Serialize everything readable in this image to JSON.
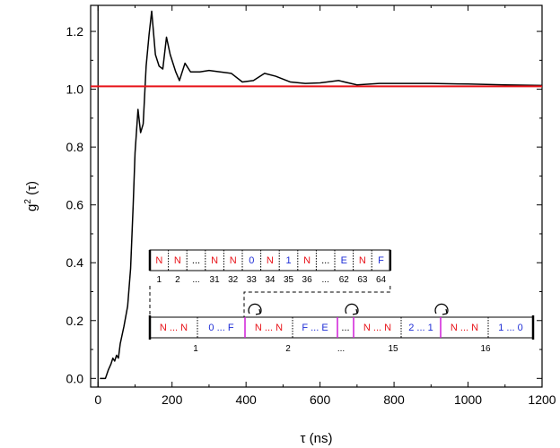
{
  "chart_data": {
    "type": "line",
    "title": "",
    "xlabel": "τ (ns)",
    "ylabel_base": "g",
    "ylabel_sup": "2",
    "ylabel_arg": " (τ)",
    "xlim": [
      -20,
      1200
    ],
    "ylim": [
      -0.03,
      1.29
    ],
    "x_ticks": [
      0,
      200,
      400,
      600,
      800,
      1000,
      1200
    ],
    "x_tick_labels": [
      "0",
      "200",
      "400",
      "600",
      "800",
      "1000",
      "1200"
    ],
    "y_ticks": [
      0.0,
      0.2,
      0.4,
      0.6,
      0.8,
      1.0,
      1.2
    ],
    "y_tick_labels": [
      "0.0",
      "0.2",
      "0.4",
      "0.6",
      "0.8",
      "1.0",
      "1.2"
    ],
    "grid": false,
    "vertical_line_x": 0,
    "reference_line": {
      "y": 1.01,
      "color": "#e8141a"
    },
    "series": [
      {
        "color": "#000000",
        "points": [
          [
            5,
            0.0
          ],
          [
            20,
            0.0
          ],
          [
            28,
            0.03
          ],
          [
            35,
            0.05
          ],
          [
            40,
            0.07
          ],
          [
            45,
            0.06
          ],
          [
            50,
            0.08
          ],
          [
            55,
            0.07
          ],
          [
            60,
            0.12
          ],
          [
            70,
            0.18
          ],
          [
            80,
            0.25
          ],
          [
            88,
            0.38
          ],
          [
            95,
            0.6
          ],
          [
            100,
            0.78
          ],
          [
            108,
            0.93
          ],
          [
            115,
            0.85
          ],
          [
            122,
            0.88
          ],
          [
            130,
            1.08
          ],
          [
            138,
            1.19
          ],
          [
            145,
            1.27
          ],
          [
            155,
            1.12
          ],
          [
            165,
            1.08
          ],
          [
            175,
            1.07
          ],
          [
            185,
            1.18
          ],
          [
            195,
            1.12
          ],
          [
            210,
            1.06
          ],
          [
            220,
            1.03
          ],
          [
            235,
            1.09
          ],
          [
            250,
            1.06
          ],
          [
            275,
            1.06
          ],
          [
            300,
            1.065
          ],
          [
            330,
            1.06
          ],
          [
            360,
            1.055
          ],
          [
            390,
            1.025
          ],
          [
            420,
            1.03
          ],
          [
            450,
            1.055
          ],
          [
            480,
            1.045
          ],
          [
            520,
            1.025
          ],
          [
            560,
            1.02
          ],
          [
            600,
            1.022
          ],
          [
            650,
            1.03
          ],
          [
            700,
            1.015
          ],
          [
            760,
            1.02
          ],
          [
            820,
            1.02
          ],
          [
            900,
            1.02
          ],
          [
            1000,
            1.018
          ],
          [
            1100,
            1.015
          ],
          [
            1200,
            1.013
          ]
        ]
      }
    ]
  },
  "inset": {
    "colors": {
      "red": "#e8141a",
      "blue": "#1f2ed6",
      "magenta": "#d01ed8"
    },
    "top_cells": [
      {
        "text": "N",
        "color": "red",
        "idx": "1"
      },
      {
        "text": "N",
        "color": "red",
        "idx": "2"
      },
      {
        "text": "...",
        "color": "black",
        "idx": "..."
      },
      {
        "text": "N",
        "color": "red",
        "idx": "31"
      },
      {
        "text": "N",
        "color": "red",
        "idx": "32"
      },
      {
        "text": "0",
        "color": "blue",
        "idx": "33"
      },
      {
        "text": "N",
        "color": "red",
        "idx": "34"
      },
      {
        "text": "1",
        "color": "blue",
        "idx": "35"
      },
      {
        "text": "N",
        "color": "red",
        "idx": "36"
      },
      {
        "text": "...",
        "color": "black",
        "idx": "..."
      },
      {
        "text": "E",
        "color": "blue",
        "idx": "62"
      },
      {
        "text": "N",
        "color": "red",
        "idx": "63"
      },
      {
        "text": "F",
        "color": "blue",
        "idx": "64"
      }
    ],
    "bottom_segments": [
      {
        "left": "N",
        "mid": " ... ",
        "right": "N",
        "colorL": "red",
        "colorR": "red"
      },
      {
        "left": "0",
        "mid": " ... ",
        "right": "F",
        "colorL": "blue",
        "colorR": "blue"
      },
      {
        "left": "N",
        "mid": " ... ",
        "right": "N",
        "colorL": "red",
        "colorR": "red"
      },
      {
        "left": "F",
        "mid": " ... ",
        "right": "E",
        "colorL": "blue",
        "colorR": "blue"
      },
      {
        "left": "...",
        "mid": "",
        "right": "",
        "colorL": "black",
        "colorR": "black"
      },
      {
        "left": "N",
        "mid": " ... ",
        "right": "N",
        "colorL": "red",
        "colorR": "red"
      },
      {
        "left": "2",
        "mid": " ... ",
        "right": "1",
        "colorL": "blue",
        "colorR": "blue"
      },
      {
        "left": "N",
        "mid": " ... ",
        "right": "N",
        "colorL": "red",
        "colorR": "red"
      },
      {
        "left": "1",
        "mid": " ... ",
        "right": "0",
        "colorL": "blue",
        "colorR": "blue"
      }
    ],
    "block_labels": [
      "1",
      "2",
      "...",
      "15",
      "16"
    ]
  }
}
